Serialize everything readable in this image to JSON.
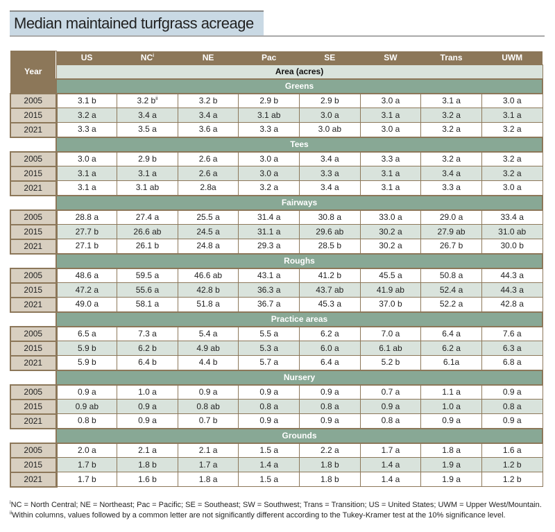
{
  "title": "Median maintained turfgrass acreage",
  "header": {
    "year_label": "Year",
    "columns": [
      "US",
      "NC",
      "NE",
      "Pac",
      "SE",
      "SW",
      "Trans",
      "UWM"
    ],
    "nc_footnote_mark": "i",
    "area_label": "Area (acres)"
  },
  "sections": [
    {
      "name": "Greens",
      "rows": [
        {
          "year": "2005",
          "values": [
            "3.1 b",
            "3.2 b",
            "3.2 b",
            "2.9 b",
            "2.9 b",
            "3.0 a",
            "3.1 a",
            "3.0 a"
          ],
          "nc_mark": "ii"
        },
        {
          "year": "2015",
          "values": [
            "3.2 a",
            "3.4 a",
            "3.4 a",
            "3.1 ab",
            "3.0 a",
            "3.1 a",
            "3.2 a",
            "3.1 a"
          ]
        },
        {
          "year": "2021",
          "values": [
            "3.3 a",
            "3.5 a",
            "3.6 a",
            "3.3 a",
            "3.0 ab",
            "3.0 a",
            "3.2 a",
            "3.2 a"
          ]
        }
      ]
    },
    {
      "name": "Tees",
      "rows": [
        {
          "year": "2005",
          "values": [
            "3.0 a",
            "2.9 b",
            "2.6 a",
            "3.0 a",
            "3.4 a",
            "3.3 a",
            "3.2 a",
            "3.2 a"
          ]
        },
        {
          "year": "2015",
          "values": [
            "3.1 a",
            "3.1 a",
            "2.6 a",
            "3.0 a",
            "3.3 a",
            "3.1 a",
            "3.4 a",
            "3.2 a"
          ]
        },
        {
          "year": "2021",
          "values": [
            "3.1 a",
            "3.1 ab",
            "2.8a",
            "3.2 a",
            "3.4 a",
            "3.1 a",
            "3.3 a",
            "3.0 a"
          ]
        }
      ]
    },
    {
      "name": "Fairways",
      "rows": [
        {
          "year": "2005",
          "values": [
            "28.8 a",
            "27.4 a",
            "25.5 a",
            "31.4 a",
            "30.8 a",
            "33.0 a",
            "29.0 a",
            "33.4 a"
          ]
        },
        {
          "year": "2015",
          "values": [
            "27.7 b",
            "26.6 ab",
            "24.5 a",
            "31.1 a",
            "29.6 ab",
            "30.2 a",
            "27.9 ab",
            "31.0 ab"
          ]
        },
        {
          "year": "2021",
          "values": [
            "27.1 b",
            "26.1 b",
            "24.8 a",
            "29.3 a",
            "28.5 b",
            "30.2 a",
            "26.7 b",
            "30.0 b"
          ]
        }
      ]
    },
    {
      "name": "Roughs",
      "rows": [
        {
          "year": "2005",
          "values": [
            "48.6 a",
            "59.5 a",
            "46.6 ab",
            "43.1 a",
            "41.2 b",
            "45.5 a",
            "50.8 a",
            "44.3 a"
          ]
        },
        {
          "year": "2015",
          "values": [
            "47.2 a",
            "55.6 a",
            "42.8 b",
            "36.3 a",
            "43.7 ab",
            "41.9 ab",
            "52.4 a",
            "44.3 a"
          ]
        },
        {
          "year": "2021",
          "values": [
            "49.0 a",
            "58.1 a",
            "51.8 a",
            "36.7 a",
            "45.3 a",
            "37.0 b",
            "52.2 a",
            "42.8 a"
          ]
        }
      ]
    },
    {
      "name": "Practice areas",
      "rows": [
        {
          "year": "2005",
          "values": [
            "6.5 a",
            "7.3 a",
            "5.4 a",
            "5.5 a",
            "6.2 a",
            "7.0 a",
            "6.4 a",
            "7.6 a"
          ]
        },
        {
          "year": "2015",
          "values": [
            "5.9 b",
            "6.2 b",
            "4.9 ab",
            "5.3 a",
            "6.0 a",
            "6.1 ab",
            "6.2 a",
            "6.3 a"
          ]
        },
        {
          "year": "2021",
          "values": [
            "5.9 b",
            "6.4 b",
            "4.4 b",
            "5.7 a",
            "6.4 a",
            "5.2 b",
            "6.1a",
            "6.8 a"
          ]
        }
      ]
    },
    {
      "name": "Nursery",
      "rows": [
        {
          "year": "2005",
          "values": [
            "0.9 a",
            "1.0 a",
            "0.9 a",
            "0.9 a",
            "0.9 a",
            "0.7 a",
            "1.1 a",
            "0.9 a"
          ]
        },
        {
          "year": "2015",
          "values": [
            "0.9 ab",
            "0.9 a",
            "0.8 ab",
            "0.8 a",
            "0.8 a",
            "0.9 a",
            "1.0 a",
            "0.8 a"
          ]
        },
        {
          "year": "2021",
          "values": [
            "0.8 b",
            "0.9 a",
            "0.7 b",
            "0.9 a",
            "0.9 a",
            "0.8 a",
            "0.9 a",
            "0.9 a"
          ]
        }
      ]
    },
    {
      "name": "Grounds",
      "rows": [
        {
          "year": "2005",
          "values": [
            "2.0 a",
            "2.1 a",
            "2.1 a",
            "1.5 a",
            "2.2 a",
            "1.7 a",
            "1.8 a",
            "1.6 a"
          ]
        },
        {
          "year": "2015",
          "values": [
            "1.7 b",
            "1.8 b",
            "1.7 a",
            "1.4 a",
            "1.8 b",
            "1.4 a",
            "1.9 a",
            "1.2 b"
          ]
        },
        {
          "year": "2021",
          "values": [
            "1.7 b",
            "1.6 b",
            "1.8 a",
            "1.5 a",
            "1.8 b",
            "1.4 a",
            "1.9 a",
            "1.2 b"
          ]
        }
      ]
    }
  ],
  "footnotes": [
    {
      "mark": "i",
      "text": "NC = North Central; NE = Northeast; Pac = Pacific; SE = Southeast; SW = Southwest; Trans = Transition; US = United States; UWM = Upper West/Mountain."
    },
    {
      "mark": "ii",
      "text": "Within columns, values followed by a common letter are not significantly different according to the Tukey-Kramer test at the 10% significance level."
    }
  ],
  "colors": {
    "header": "#8c7759",
    "section": "#88a895",
    "alt_row": "#d9e3dc",
    "year_cell": "#d8cfc0",
    "title_bg": "#c9d9e4"
  }
}
